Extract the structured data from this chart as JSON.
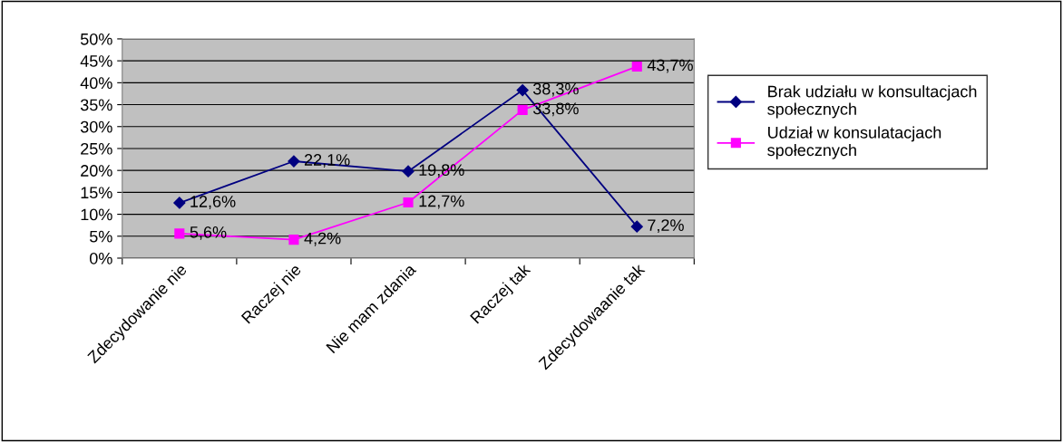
{
  "chart_data": {
    "type": "line",
    "categories": [
      "Zdecydowanie nie",
      "Raczej nie",
      "Nie mam zdania",
      "Raczej tak",
      "Zdecydowaanie tak"
    ],
    "series": [
      {
        "name": "Brak udziału w konsultacjach\nspołecznych",
        "color": "#000080",
        "marker": "diamond",
        "values": [
          12.6,
          22.1,
          19.8,
          38.3,
          7.2
        ],
        "value_labels": [
          "12,6%",
          "22,1%",
          "19,8%",
          "38,3%",
          "7,2%"
        ]
      },
      {
        "name": "Udział w konsulatacjach\nspołecznych",
        "color": "#ff00ff",
        "marker": "square",
        "values": [
          5.6,
          4.2,
          12.7,
          33.8,
          43.7
        ],
        "value_labels": [
          "5,6%",
          "4,2%",
          "12,7%",
          "33,8%",
          "43,7%"
        ]
      }
    ],
    "ylim": [
      0,
      50
    ],
    "yticks": [
      {
        "value": 0,
        "label": "0%"
      },
      {
        "value": 5,
        "label": "5%"
      },
      {
        "value": 10,
        "label": "10%"
      },
      {
        "value": 15,
        "label": "15%"
      },
      {
        "value": 20,
        "label": "20%"
      },
      {
        "value": 25,
        "label": "25%"
      },
      {
        "value": 30,
        "label": "30%"
      },
      {
        "value": 35,
        "label": "35%"
      },
      {
        "value": 40,
        "label": "40%"
      },
      {
        "value": 45,
        "label": "45%"
      },
      {
        "value": 50,
        "label": "50%"
      }
    ],
    "grid": "y",
    "legend": "right",
    "line_style": "solid"
  }
}
